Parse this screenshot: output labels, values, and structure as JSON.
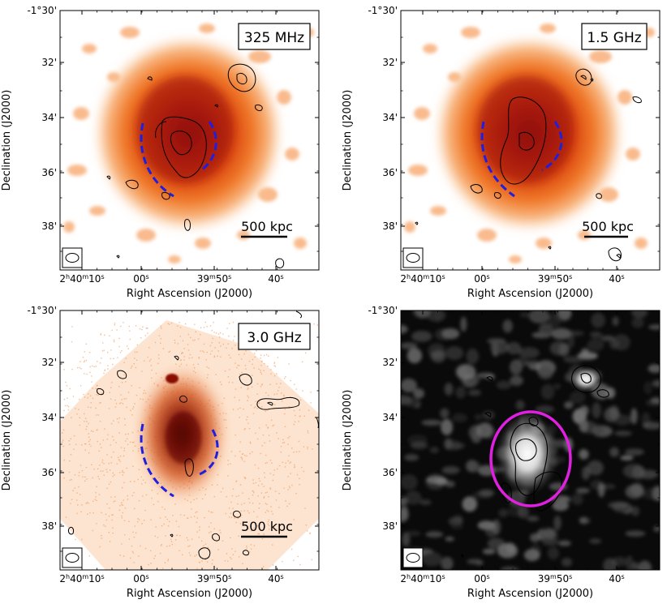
{
  "figure": {
    "panels": [
      {
        "id": "a",
        "label": "325 MHz",
        "scalebar": "500 kpc",
        "style": "xray-smooth"
      },
      {
        "id": "b",
        "label": "1.5 GHz",
        "scalebar": "500 kpc",
        "style": "xray-smooth"
      },
      {
        "id": "c",
        "label": "3.0 GHz",
        "scalebar": "500 kpc",
        "style": "xray-counts"
      },
      {
        "id": "d",
        "label": "",
        "scalebar": "",
        "style": "radio-grey"
      }
    ],
    "axes": {
      "xlabel": "Right Ascension (J2000)",
      "ylabel": "Declination (J2000)",
      "xticks": [
        {
          "h": "2",
          "hu": "h",
          "m": "40",
          "mu": "m",
          "s": "10",
          "su": "s"
        },
        {
          "s": "00",
          "su": "s"
        },
        {
          "m": "39",
          "mu": "m",
          "s": "50",
          "su": "s"
        },
        {
          "s": "40",
          "su": "s"
        }
      ],
      "yticks": [
        "-1°30'",
        "32'",
        "34'",
        "36'",
        "38'"
      ]
    },
    "colors": {
      "shock_arc": "#1f1fe0",
      "ellipse": "#e020e0",
      "contour": "#000000",
      "xray_core": "#8a0f08",
      "xray_halo": "#f59a55"
    }
  }
}
